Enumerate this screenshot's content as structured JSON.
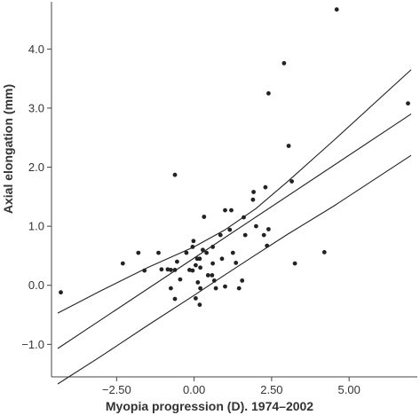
{
  "chart_data": {
    "type": "scatter",
    "title": "",
    "xlabel": "Myopia progression (D). 1974–2002",
    "ylabel": "Axial elongation (mm)",
    "xlim": [
      -4.6,
      7.2
    ],
    "ylim": [
      -1.55,
      4.8
    ],
    "x_ticks": [
      -2.5,
      0,
      2.5,
      5
    ],
    "x_tick_labels": [
      "−2.50",
      "0.00",
      "2.50",
      "5.00"
    ],
    "y_ticks": [
      -1,
      0,
      1,
      2,
      3,
      4
    ],
    "y_tick_labels": [
      "−1.0",
      "0.0",
      "1.0",
      "2.0",
      "3.0",
      "4.0"
    ],
    "grid": false,
    "colors": {
      "points": "#222222",
      "lines": "#222222",
      "axis": "#444444"
    },
    "points": [
      {
        "x": -4.3,
        "y": -0.12
      },
      {
        "x": -2.3,
        "y": 0.37
      },
      {
        "x": -1.8,
        "y": 0.55
      },
      {
        "x": -1.6,
        "y": 0.25
      },
      {
        "x": -1.15,
        "y": 0.55
      },
      {
        "x": -1.05,
        "y": 0.27
      },
      {
        "x": -0.85,
        "y": 0.27
      },
      {
        "x": -0.75,
        "y": 0.26
      },
      {
        "x": -0.62,
        "y": 0.26
      },
      {
        "x": -0.55,
        "y": 0.4
      },
      {
        "x": -0.75,
        "y": -0.05
      },
      {
        "x": -0.45,
        "y": 0.1
      },
      {
        "x": -0.62,
        "y": -0.23
      },
      {
        "x": -0.62,
        "y": 1.87
      },
      {
        "x": -0.25,
        "y": 0.55
      },
      {
        "x": -0.15,
        "y": 0.26
      },
      {
        "x": -0.05,
        "y": 0.25
      },
      {
        "x": -0.05,
        "y": 0.65
      },
      {
        "x": -0.02,
        "y": 0.75
      },
      {
        "x": 0.05,
        "y": 0.34
      },
      {
        "x": 0.1,
        "y": 0.45
      },
      {
        "x": 0.18,
        "y": 0.45
      },
      {
        "x": 0.2,
        "y": 0.3
      },
      {
        "x": 0.12,
        "y": 0.05
      },
      {
        "x": 0.2,
        "y": -0.05
      },
      {
        "x": 0.05,
        "y": -0.22
      },
      {
        "x": 0.18,
        "y": -0.33
      },
      {
        "x": 0.28,
        "y": 0.6
      },
      {
        "x": 0.32,
        "y": 1.16
      },
      {
        "x": 0.4,
        "y": 0.55
      },
      {
        "x": 0.45,
        "y": 0.17
      },
      {
        "x": 0.58,
        "y": 0.17
      },
      {
        "x": 0.6,
        "y": 0.37
      },
      {
        "x": 0.6,
        "y": 0.65
      },
      {
        "x": 0.65,
        "y": 0.08
      },
      {
        "x": 0.7,
        "y": -0.05
      },
      {
        "x": 0.85,
        "y": 0.85
      },
      {
        "x": 0.9,
        "y": 0.45
      },
      {
        "x": 1.0,
        "y": 1.27
      },
      {
        "x": 1.0,
        "y": -0.02
      },
      {
        "x": 1.15,
        "y": 0.94
      },
      {
        "x": 1.2,
        "y": 1.27
      },
      {
        "x": 1.25,
        "y": 0.55
      },
      {
        "x": 1.35,
        "y": 0.38
      },
      {
        "x": 1.45,
        "y": -0.05
      },
      {
        "x": 1.55,
        "y": 0.08
      },
      {
        "x": 1.6,
        "y": 1.15
      },
      {
        "x": 1.65,
        "y": 0.85
      },
      {
        "x": 1.9,
        "y": 1.45
      },
      {
        "x": 1.92,
        "y": 1.58
      },
      {
        "x": 2.0,
        "y": 1.0
      },
      {
        "x": 2.3,
        "y": 1.66
      },
      {
        "x": 2.25,
        "y": 0.85
      },
      {
        "x": 2.4,
        "y": 0.95
      },
      {
        "x": 2.35,
        "y": 0.67
      },
      {
        "x": 2.4,
        "y": 3.25
      },
      {
        "x": 2.9,
        "y": 3.76
      },
      {
        "x": 3.05,
        "y": 2.36
      },
      {
        "x": 3.15,
        "y": 1.76
      },
      {
        "x": 3.25,
        "y": 0.37
      },
      {
        "x": 4.2,
        "y": 0.56
      },
      {
        "x": 4.6,
        "y": 4.67
      },
      {
        "x": 6.9,
        "y": 3.08
      }
    ],
    "lines": [
      {
        "name": "",
        "x": [
          -4.4,
          7.0
        ],
        "y": [
          -1.07,
          2.9
        ]
      },
      {
        "name": "",
        "x": [
          -4.4,
          -3,
          -1.5,
          0,
          1,
          2,
          3,
          4.5,
          7.0
        ],
        "y": [
          -0.47,
          -0.09,
          0.3,
          0.65,
          0.94,
          1.3,
          1.75,
          2.45,
          3.65
        ]
      },
      {
        "name": "",
        "x": [
          -4.4,
          -3,
          -1.5,
          0,
          1,
          2,
          3,
          4.5,
          7.0
        ],
        "y": [
          -1.67,
          -1.2,
          -0.68,
          -0.17,
          0.18,
          0.52,
          0.86,
          1.34,
          2.2
        ]
      }
    ]
  }
}
